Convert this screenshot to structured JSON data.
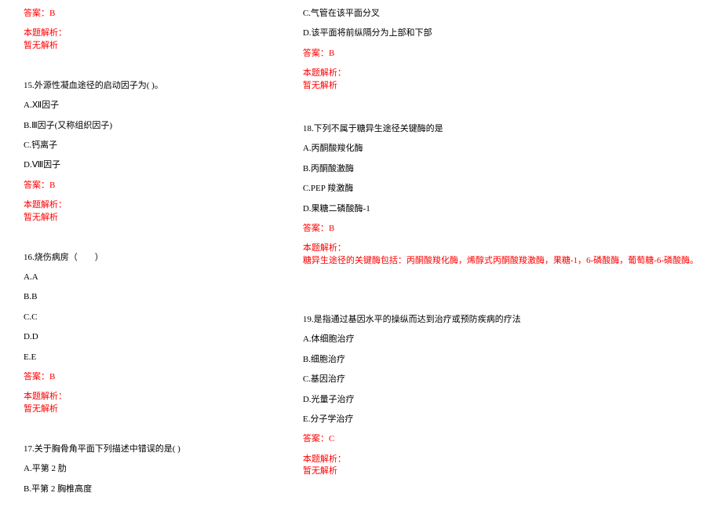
{
  "col1": {
    "answer14": "答案：B",
    "analysis_label14": "本题解析：",
    "no_analysis14": "暂无解析",
    "q15": {
      "title": "15.外源性凝血途径的启动因子为( )。",
      "optA": "A.Ⅻ因子",
      "optB": "B.Ⅲ因子(又称组织因子)",
      "optC": "C.钙离子",
      "optD": "D.Ⅷ因子",
      "answer": "答案：B",
      "analysis_label": "本题解析：",
      "no_analysis": "暂无解析"
    },
    "q16": {
      "title": "16.烧伤病房（　　）",
      "optA": "A.A",
      "optB": "B.B",
      "optC": "C.C",
      "optD": "D.D",
      "optE": "E.E",
      "answer": "答案：B",
      "analysis_label": "本题解析：",
      "no_analysis": "暂无解析"
    },
    "q17": {
      "title": "17.关于胸骨角平面下列描述中错误的是( )",
      "optA": "A.平第 2 肋",
      "optB": "B.平第 2 胸椎高度"
    }
  },
  "col2": {
    "q17cont": {
      "optC": "C.气管在该平面分叉",
      "optD": "D.该平面将前纵隔分为上部和下部",
      "answer": "答案：B",
      "analysis_label": "本题解析：",
      "no_analysis": "暂无解析"
    },
    "q18": {
      "title": "18.下列不属于糖异生途径关键酶的是",
      "optA": "A.丙酮酸羧化酶",
      "optB": "B.丙酮酸激酶",
      "optC": "C.PEP 羧激酶",
      "optD": "D.果糖二磷酸酶-1",
      "answer": "答案：B",
      "analysis_label": "本题解析：",
      "analysis_text": "糖异生途径的关键酶包括：丙酮酸羧化酶，烯醇式丙酮酸羧激酶，果糖-1，6-磷酸酶，葡萄糖-6-磷酸酶。"
    },
    "q19": {
      "title": "19.是指通过基因水平的操纵而达到治疗或预防疾病的疗法",
      "optA": "A.体细胞治疗",
      "optB": "B.细胞治疗",
      "optC": "C.基因治疗",
      "optD": "D.光量子治疗",
      "optE": "E.分子学治疗",
      "answer": "答案：C",
      "analysis_label": "本题解析：",
      "no_analysis": "暂无解析"
    }
  }
}
